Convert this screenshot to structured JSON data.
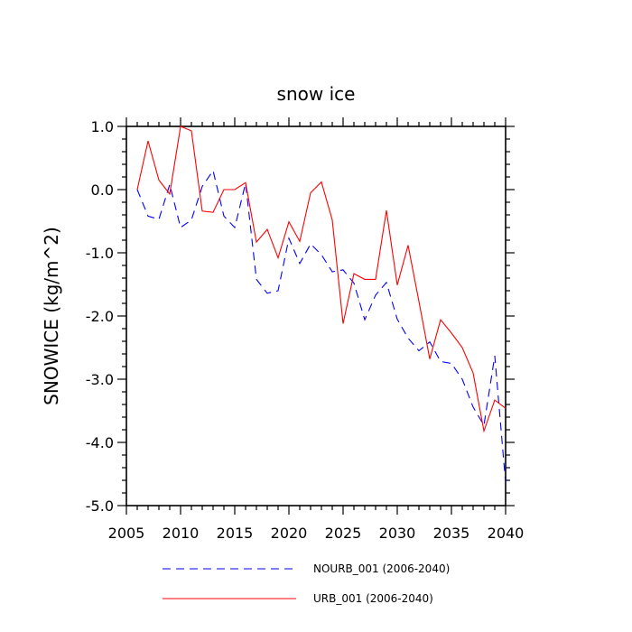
{
  "chart_data": {
    "type": "line",
    "title": "snow ice",
    "xlabel": "",
    "ylabel": "SNOWICE  (kg/m^2)",
    "xlim": [
      2005,
      2040
    ],
    "ylim": [
      -5.0,
      1.0
    ],
    "xticks": [
      2005,
      2010,
      2015,
      2020,
      2025,
      2030,
      2035,
      2040
    ],
    "xtick_labels": [
      "2005",
      "2010",
      "2015",
      "2020",
      "2025",
      "2030",
      "2035",
      "2040"
    ],
    "yticks": [
      1.0,
      0.0,
      -1.0,
      -2.0,
      -3.0,
      -4.0,
      -5.0
    ],
    "ytick_labels": [
      "1.0",
      "0.0",
      "-1.0",
      "-2.0",
      "-3.0",
      "-4.0",
      "-5.0"
    ],
    "x": [
      2006,
      2007,
      2008,
      2009,
      2010,
      2011,
      2012,
      2013,
      2014,
      2015,
      2016,
      2017,
      2018,
      2019,
      2020,
      2021,
      2022,
      2023,
      2024,
      2025,
      2026,
      2027,
      2028,
      2029,
      2030,
      2031,
      2032,
      2033,
      2034,
      2035,
      2036,
      2037,
      2038,
      2039,
      2040
    ],
    "series": [
      {
        "name": "NOURB_001 (2006-2040)",
        "color": "#0000ff",
        "style": "dashed",
        "values": [
          0.0,
          -0.42,
          -0.47,
          0.08,
          -0.6,
          -0.48,
          0.05,
          0.3,
          -0.42,
          -0.6,
          0.1,
          -1.42,
          -1.64,
          -1.6,
          -0.77,
          -1.17,
          -0.86,
          -1.03,
          -1.3,
          -1.27,
          -1.48,
          -2.06,
          -1.67,
          -1.47,
          -2.05,
          -2.35,
          -2.55,
          -2.41,
          -2.72,
          -2.75,
          -3.0,
          -3.44,
          -3.73,
          -2.63,
          -4.64
        ]
      },
      {
        "name": "URB_001 (2006-2040)",
        "color": "#ff0000",
        "style": "solid",
        "values": [
          0.0,
          0.77,
          0.15,
          -0.07,
          1.0,
          0.93,
          -0.34,
          -0.36,
          0.0,
          0.0,
          0.11,
          -0.83,
          -0.63,
          -1.08,
          -0.51,
          -0.82,
          -0.05,
          0.12,
          -0.48,
          -2.12,
          -1.33,
          -1.42,
          -1.42,
          -0.33,
          -1.51,
          -0.88,
          -1.77,
          -2.68,
          -2.06,
          -2.27,
          -2.5,
          -2.9,
          -3.82,
          -3.33,
          -3.46
        ]
      }
    ]
  }
}
